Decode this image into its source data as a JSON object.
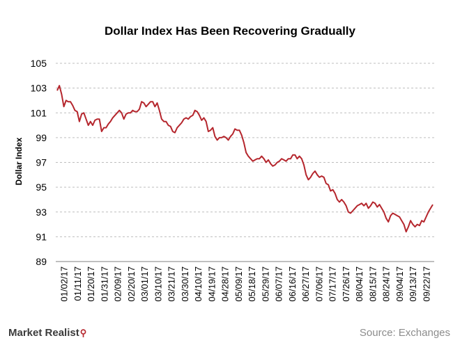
{
  "footer": {
    "brand": "Market Realist",
    "source": "Source: Exchanges"
  },
  "colors": {
    "line": "#b5262d",
    "grid": "#bdbdbd"
  },
  "icons": {
    "brand_logo": "magnifier-icon"
  },
  "chart_data": {
    "type": "line",
    "title": "Dollar Index Has Been Recovering Gradually",
    "ylabel": "Dollar Index",
    "xlabel": "",
    "ylim": [
      89,
      105
    ],
    "yticks": [
      89,
      91,
      93,
      95,
      97,
      99,
      101,
      103,
      105
    ],
    "grid": true,
    "legend": "none",
    "x_tick_labels": [
      "01/02/17",
      "01/11/17",
      "01/20/17",
      "01/31/17",
      "02/09/17",
      "02/20/17",
      "03/01/17",
      "03/10/17",
      "03/21/17",
      "03/30/17",
      "04/10/17",
      "04/19/17",
      "04/28/17",
      "05/09/17",
      "05/18/17",
      "05/29/17",
      "06/07/17",
      "06/16/17",
      "06/27/17",
      "07/06/17",
      "07/17/17",
      "07/26/17",
      "08/04/17",
      "08/15/17",
      "08/24/17",
      "09/04/17",
      "09/13/17",
      "09/22/17"
    ],
    "series": [
      {
        "values": [
          102.8,
          103.2,
          102.5,
          101.5,
          102.0,
          101.9,
          101.9,
          101.6,
          101.2,
          101.1,
          100.3,
          100.9,
          101.0,
          100.5,
          100.0,
          100.3,
          100.0,
          100.4,
          100.5,
          100.5,
          99.5,
          99.8,
          99.8,
          100.1,
          100.3,
          100.6,
          100.8,
          101.0,
          101.2,
          101.0,
          100.5,
          100.9,
          101.0,
          101.0,
          101.2,
          101.1,
          101.1,
          101.3,
          101.9,
          101.8,
          101.5,
          101.7,
          101.9,
          101.9,
          101.5,
          101.8,
          101.2,
          100.5,
          100.3,
          100.3,
          100.0,
          99.9,
          99.5,
          99.4,
          99.8,
          100.0,
          100.2,
          100.5,
          100.6,
          100.5,
          100.7,
          100.8,
          101.2,
          101.1,
          100.8,
          100.4,
          100.6,
          100.3,
          99.5,
          99.6,
          99.8,
          99.1,
          98.8,
          99.0,
          99.0,
          99.1,
          99.0,
          98.8,
          99.1,
          99.3,
          99.7,
          99.6,
          99.6,
          99.2,
          98.6,
          97.8,
          97.5,
          97.3,
          97.1,
          97.2,
          97.3,
          97.3,
          97.5,
          97.3,
          97.0,
          97.2,
          96.9,
          96.7,
          96.8,
          97.0,
          97.1,
          97.3,
          97.2,
          97.1,
          97.3,
          97.3,
          97.6,
          97.6,
          97.3,
          97.5,
          97.3,
          96.8,
          96.0,
          95.6,
          95.8,
          96.1,
          96.3,
          96.0,
          95.8,
          95.9,
          95.8,
          95.3,
          95.2,
          94.7,
          94.8,
          94.5,
          94.0,
          93.8,
          94.0,
          93.8,
          93.5,
          93.0,
          92.9,
          93.1,
          93.3,
          93.5,
          93.6,
          93.7,
          93.5,
          93.7,
          93.3,
          93.5,
          93.8,
          93.7,
          93.4,
          93.6,
          93.3,
          93.0,
          92.5,
          92.2,
          92.7,
          92.9,
          92.8,
          92.7,
          92.6,
          92.3,
          92.0,
          91.4,
          91.8,
          92.3,
          92.0,
          91.8,
          92.0,
          91.9,
          92.3,
          92.2,
          92.6,
          93.0,
          93.3,
          93.6
        ]
      }
    ]
  }
}
